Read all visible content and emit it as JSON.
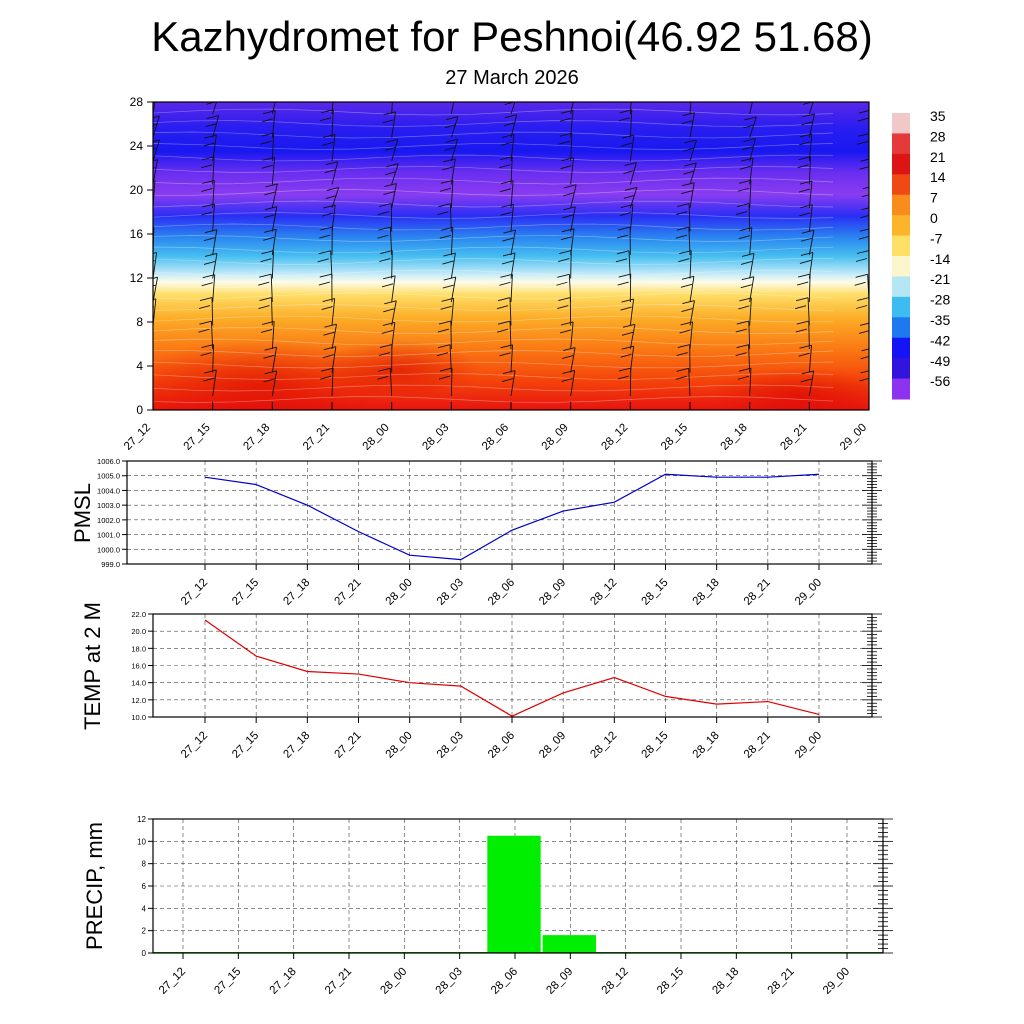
{
  "header": {
    "title": "Kazhydromet for Peshnoi(46.92 51.68)",
    "subtitle": "27 March 2026"
  },
  "chart_data": [
    {
      "type": "heatmap",
      "name": "vertical-temperature-wind",
      "time_labels": [
        "27_12",
        "27_15",
        "27_18",
        "27_21",
        "28_00",
        "28_03",
        "28_06",
        "28_09",
        "28_12",
        "28_15",
        "28_18",
        "28_21",
        "29_00"
      ],
      "y_ticks": [
        0,
        4,
        8,
        12,
        16,
        20,
        24,
        28
      ],
      "ylim": [
        0,
        28
      ],
      "colorbar_labels": [
        35,
        28,
        21,
        14,
        7,
        0,
        -7,
        -14,
        -21,
        -28,
        -35,
        -42,
        -49,
        -56
      ],
      "colorbar_colors": [
        "#f0c8c8",
        "#e63a3a",
        "#dc1414",
        "#f04a14",
        "#fa8c1e",
        "#fcb42a",
        "#fee066",
        "#fdf6cc",
        "#b4e6f5",
        "#3cbcf0",
        "#1e78f0",
        "#1414f5",
        "#3214dc",
        "#8c32f0"
      ]
    },
    {
      "type": "line",
      "name": "pmsl",
      "ylabel": "PMSL",
      "categories": [
        "27_12",
        "27_15",
        "27_18",
        "27_21",
        "28_00",
        "28_03",
        "28_06",
        "28_09",
        "28_12",
        "28_15",
        "28_18",
        "28_21",
        "29_00"
      ],
      "values": [
        1004.9,
        1004.4,
        1003.0,
        1001.2,
        999.6,
        999.3,
        1001.3,
        1002.6,
        1003.2,
        1005.1,
        1004.9,
        1004.9,
        1005.1
      ],
      "ylim": [
        999.0,
        1006.0
      ],
      "y_ticks": [
        "999.0",
        "1000.0",
        "1001.0",
        "1002.0",
        "1003.0",
        "1004.0",
        "1005.0",
        "1006.0"
      ],
      "color": "#0000cc"
    },
    {
      "type": "line",
      "name": "temp2m",
      "ylabel": "TEMP at 2 M",
      "categories": [
        "27_12",
        "27_15",
        "27_18",
        "27_21",
        "28_00",
        "28_03",
        "28_06",
        "28_09",
        "28_12",
        "28_15",
        "28_18",
        "28_21",
        "29_00"
      ],
      "values": [
        21.3,
        17.1,
        15.3,
        15.0,
        14.0,
        13.6,
        10.1,
        12.8,
        14.6,
        12.4,
        11.5,
        11.8,
        10.3
      ],
      "ylim": [
        10.0,
        22.0
      ],
      "y_ticks": [
        "10.0",
        "12.0",
        "14.0",
        "16.0",
        "18.0",
        "20.0",
        "22.0"
      ],
      "color": "#e00000"
    },
    {
      "type": "bar",
      "name": "precip",
      "ylabel": "PRECIP, mm",
      "categories": [
        "27_12",
        "27_15",
        "27_18",
        "27_21",
        "28_00",
        "28_03",
        "28_06",
        "28_09",
        "28_12",
        "28_15",
        "28_18",
        "28_21",
        "29_00"
      ],
      "values": [
        0,
        0,
        0,
        0,
        0,
        0.05,
        10.5,
        1.6,
        0,
        0,
        0,
        0,
        0.05
      ],
      "ylim": [
        0,
        12
      ],
      "y_ticks": [
        "0",
        "2",
        "4",
        "6",
        "8",
        "10",
        "12"
      ],
      "color": "#00ee00"
    }
  ]
}
